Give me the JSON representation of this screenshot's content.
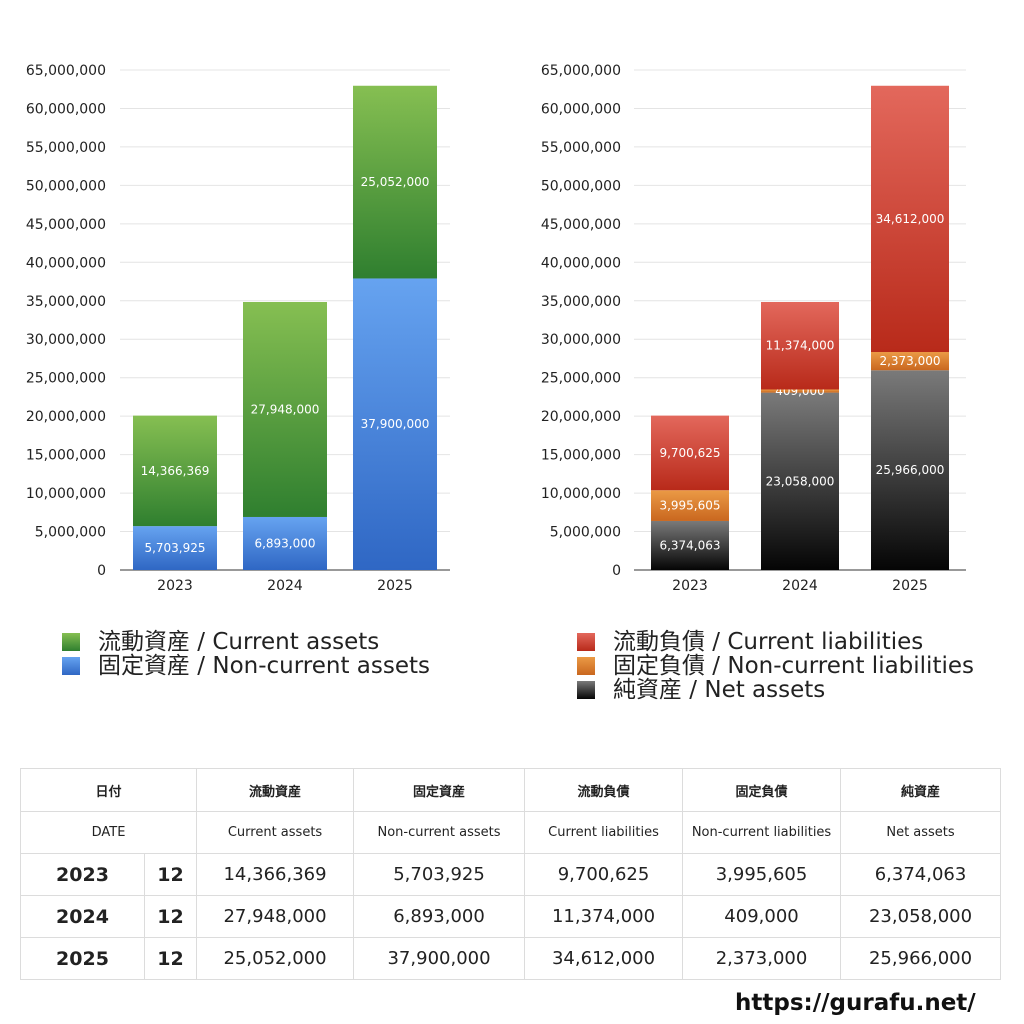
{
  "chart_data": [
    {
      "type": "bar",
      "stacked": true,
      "categories": [
        "2023",
        "2024",
        "2025"
      ],
      "ylim": [
        0,
        65000000
      ],
      "yticks": [
        "0",
        "5,000,000",
        "10,000,000",
        "15,000,000",
        "20,000,000",
        "25,000,000",
        "30,000,000",
        "35,000,000",
        "40,000,000",
        "45,000,000",
        "50,000,000",
        "55,000,000",
        "60,000,000",
        "65,000,000"
      ],
      "grid": true,
      "legend_position": "bottom",
      "series": [
        {
          "name": "固定資産 / Non-current assets",
          "values": [
            5703925,
            6893000,
            37900000
          ],
          "labels": [
            "5,703,925",
            "6,893,000",
            "37,900,000"
          ],
          "color_top": "#66a3f0",
          "color_bottom": "#2f67c4"
        },
        {
          "name": "流動資産 / Current assets",
          "values": [
            14366369,
            27948000,
            25052000
          ],
          "labels": [
            "14,366,369",
            "27,948,000",
            "25,052,000"
          ],
          "color_top": "#86bf52",
          "color_bottom": "#2f7f2f"
        }
      ]
    },
    {
      "type": "bar",
      "stacked": true,
      "categories": [
        "2023",
        "2024",
        "2025"
      ],
      "ylim": [
        0,
        65000000
      ],
      "yticks": [
        "0",
        "5,000,000",
        "10,000,000",
        "15,000,000",
        "20,000,000",
        "25,000,000",
        "30,000,000",
        "35,000,000",
        "40,000,000",
        "45,000,000",
        "50,000,000",
        "55,000,000",
        "60,000,000",
        "65,000,000"
      ],
      "grid": true,
      "legend_position": "bottom",
      "series": [
        {
          "name": "純資産 / Net assets",
          "values": [
            6374063,
            23058000,
            25966000
          ],
          "labels": [
            "6,374,063",
            "23,058,000",
            "25,966,000"
          ],
          "color_top": "#7a7a7a",
          "color_bottom": "#050505"
        },
        {
          "name": "固定負債 / Non-current liabilities",
          "values": [
            3995605,
            409000,
            2373000
          ],
          "labels": [
            "3,995,605",
            "409,000",
            "2,373,000"
          ],
          "color_top": "#eb9a45",
          "color_bottom": "#c9671f"
        },
        {
          "name": "流動負債 / Current liabilities",
          "values": [
            9700625,
            11374000,
            34612000
          ],
          "labels": [
            "9,700,625",
            "11,374,000",
            "34,612,000"
          ],
          "color_top": "#e3685c",
          "color_bottom": "#b82a1a"
        }
      ]
    }
  ],
  "legends": {
    "left": [
      {
        "label": "流動資産 / Current assets",
        "color": "#4e9a3c"
      },
      {
        "label": "固定資産 / Non-current assets",
        "color": "#3f7fd8"
      }
    ],
    "right": [
      {
        "label": "流動負債 / Current liabilities",
        "color": "#cf4434"
      },
      {
        "label": "固定負債 / Non-current liabilities",
        "color": "#e0822f"
      },
      {
        "label": "純資産 / Net assets",
        "color": "#333333"
      }
    ]
  },
  "table": {
    "header_ja": [
      "日付",
      "流動資産",
      "固定資産",
      "流動負債",
      "固定負債",
      "純資産"
    ],
    "header_en": [
      "DATE",
      "Current assets",
      "Non-current assets",
      "Current liabilities",
      "Non-current liabilities",
      "Net assets"
    ],
    "rows": [
      {
        "year": "2023",
        "month": "12",
        "values": [
          "14,366,369",
          "5,703,925",
          "9,700,625",
          "3,995,605",
          "6,374,063"
        ]
      },
      {
        "year": "2024",
        "month": "12",
        "values": [
          "27,948,000",
          "6,893,000",
          "11,374,000",
          "409,000",
          "23,058,000"
        ]
      },
      {
        "year": "2025",
        "month": "12",
        "values": [
          "25,052,000",
          "37,900,000",
          "34,612,000",
          "2,373,000",
          "25,966,000"
        ]
      }
    ]
  },
  "site_url": "https://gurafu.net/"
}
